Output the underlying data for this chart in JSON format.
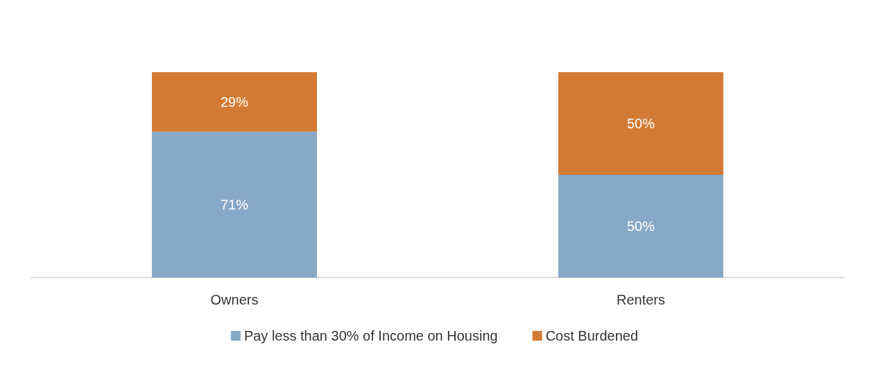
{
  "chart_data": {
    "type": "bar",
    "stacked": true,
    "categories": [
      "Owners",
      "Renters"
    ],
    "series": [
      {
        "name": "Pay less than 30% of Income on Housing",
        "color": "#87a8c6",
        "values": [
          71,
          50
        ],
        "value_labels": [
          "71%",
          "50%"
        ]
      },
      {
        "name": "Cost Burdened",
        "color": "#d37a35",
        "values": [
          29,
          50
        ],
        "value_labels": [
          "29%",
          "50%"
        ]
      }
    ],
    "legend": "bottom"
  }
}
